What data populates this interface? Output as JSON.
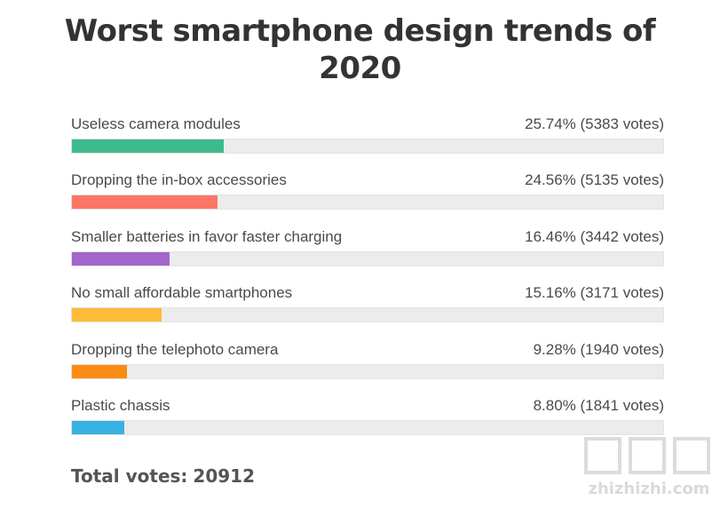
{
  "chart_data": {
    "type": "bar",
    "title": "Worst smartphone design trends of 2020",
    "categories": [
      "Useless camera modules",
      "Dropping the in-box accessories",
      "Smaller batteries in favor faster charging",
      "No small affordable smartphones",
      "Dropping the telephoto camera",
      "Plastic chassis"
    ],
    "percentages": [
      25.74,
      24.56,
      16.46,
      15.16,
      9.28,
      8.8
    ],
    "votes": [
      5383,
      5135,
      3442,
      3171,
      1940,
      1841
    ],
    "value_labels": [
      "25.74% (5383 votes)",
      "24.56% (5135 votes)",
      "16.46% (3442 votes)",
      "15.16% (3171 votes)",
      "9.28% (1940 votes)",
      "8.80% (1841 votes)"
    ],
    "colors": [
      "#3dbb8c",
      "#fc7765",
      "#a266cd",
      "#fdbb37",
      "#fc8b13",
      "#38b1e3"
    ],
    "track_color": "#ececec",
    "xlim": [
      0,
      100
    ],
    "orientation": "horizontal",
    "total_label": "Total votes:",
    "total_votes": "20912"
  },
  "watermark": {
    "text": "zhizhizhi.com"
  }
}
